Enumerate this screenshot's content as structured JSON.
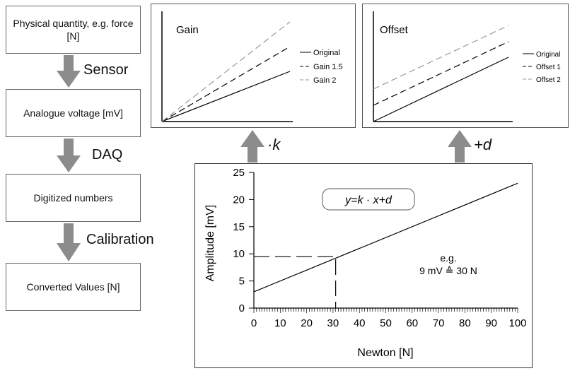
{
  "flow": {
    "boxes": [
      "Physical quantity, e.g. force [N]",
      "Analogue voltage [mV]",
      "Digitized numbers",
      "Converted Values [N]"
    ],
    "steps": [
      "Sensor",
      "DAQ",
      "Calibration"
    ]
  },
  "ops": {
    "gain": "·k",
    "offset": "+d"
  },
  "gain_panel": {
    "title": "Gain",
    "legend": [
      "Original",
      "Gain 1.5",
      "Gain 2"
    ]
  },
  "offset_panel": {
    "title": "Offset",
    "legend": [
      "Original",
      "Offset 1",
      "Offset 2"
    ]
  },
  "main_chart": {
    "formula": "y=k · x+d",
    "annotation_line1": "e.g.",
    "annotation_line2": "9 mV ≙ 30 N",
    "xlabel": "Newton [N]",
    "ylabel": "Amplitude [mV]"
  },
  "colors": {
    "arrow": "#8c8c8c",
    "border": "#555555"
  },
  "chart_data": {
    "type": "line",
    "xlabel": "Newton [N]",
    "ylabel": "Amplitude [mV]",
    "xlim": [
      0,
      100
    ],
    "ylim": [
      0,
      25
    ],
    "xticks": [
      0,
      10,
      20,
      30,
      40,
      50,
      60,
      70,
      80,
      90,
      100
    ],
    "yticks": [
      0,
      5,
      10,
      15,
      20,
      25
    ],
    "series": [
      {
        "x": [
          0,
          100
        ],
        "y": [
          3,
          23
        ]
      }
    ],
    "marker": {
      "x": 31,
      "y": 9.5
    }
  }
}
